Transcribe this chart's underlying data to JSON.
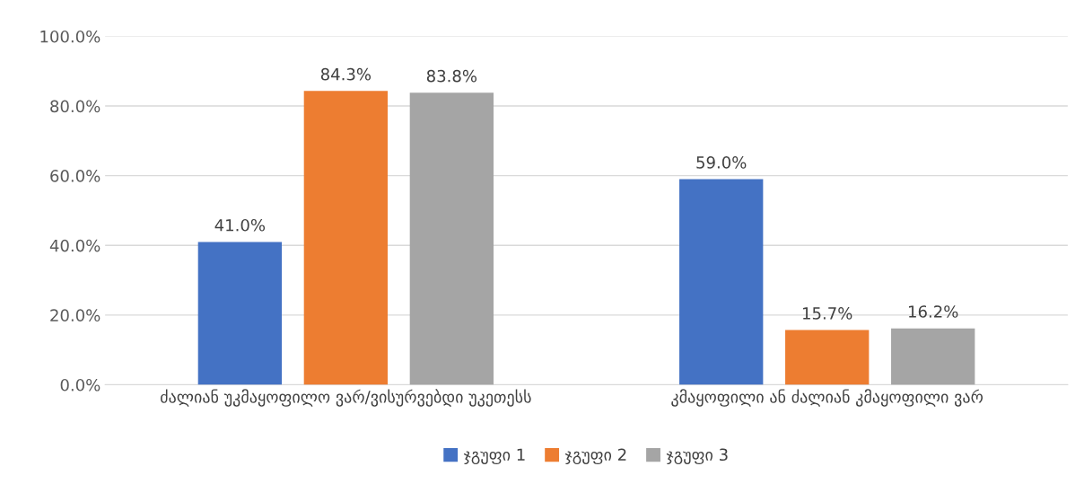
{
  "chart_data": {
    "type": "bar",
    "categories": [
      "ძალიან უკმაყოფილო ვარ/ვისურვებდი უკეთესს",
      "კმაყოფილი ან ძალიან კმაყოფილი ვარ"
    ],
    "series": [
      {
        "name": "ჯგუფი 1",
        "color": "#4472c4",
        "values": [
          41.0,
          59.0
        ],
        "value_labels": [
          "41.0%",
          "59.0%"
        ]
      },
      {
        "name": "ჯგუფი 2",
        "color": "#ed7d31",
        "values": [
          84.3,
          15.7
        ],
        "value_labels": [
          "84.3%",
          "15.7%"
        ]
      },
      {
        "name": "ჯგუფი 3",
        "color": "#a5a5a5",
        "values": [
          83.8,
          16.2
        ],
        "value_labels": [
          "83.8%",
          "16.2%"
        ]
      }
    ],
    "ylim": [
      0,
      100
    ],
    "yticks": [
      {
        "value": 0,
        "label": "0.0%"
      },
      {
        "value": 20,
        "label": "20.0%"
      },
      {
        "value": 40,
        "label": "40.0%"
      },
      {
        "value": 60,
        "label": "60.0%"
      },
      {
        "value": 80,
        "label": "80.0%"
      },
      {
        "value": 100,
        "label": "100.0%"
      }
    ],
    "grid": "y",
    "legend": "bottom"
  }
}
